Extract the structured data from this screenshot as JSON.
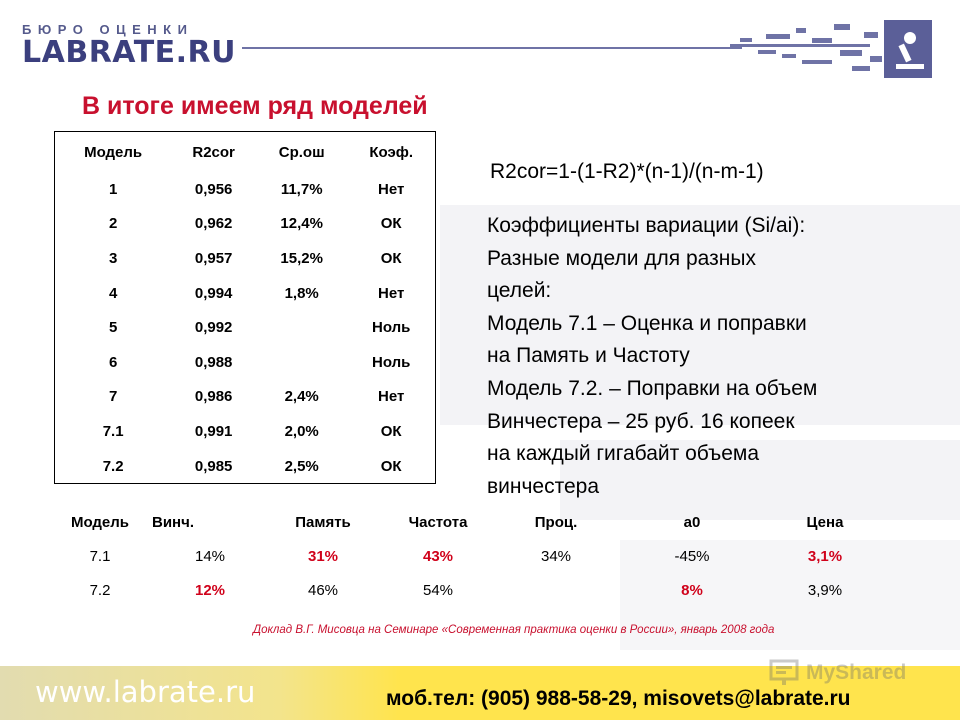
{
  "logo": {
    "sup": "БЮРО ОЦЕНКИ",
    "main": "LABRATE.RU"
  },
  "title": "В итоге имеем ряд моделей",
  "model_table": {
    "headers": [
      "Модель",
      "R2cor",
      "Ср.ош",
      "Коэф."
    ],
    "rows": [
      [
        "1",
        "0,956",
        "11,7%",
        "Нет"
      ],
      [
        "2",
        "0,962",
        "12,4%",
        "ОК"
      ],
      [
        "3",
        "0,957",
        "15,2%",
        "ОК"
      ],
      [
        "4",
        "0,994",
        "1,8%",
        "Нет"
      ],
      [
        "5",
        "0,992",
        "",
        "Ноль"
      ],
      [
        "6",
        "0,988",
        "",
        "Ноль"
      ],
      [
        "7",
        "0,986",
        "2,4%",
        "Нет"
      ],
      [
        "7.1",
        "0,991",
        "2,0%",
        "ОК"
      ],
      [
        "7.2",
        "0,985",
        "2,5%",
        "ОК"
      ]
    ]
  },
  "formula": "R2cor=1-(1-R2)*(n-1)/(n-m-1)",
  "notes": [
    "Коэффициенты вариации (Si/ai):",
    "Разные модели для разных",
    "целей:",
    "Модель 7.1 – Оценка и поправки",
    "на  Память и Частоту",
    "Модель 7.2. – Поправки на объем",
    "Винчестера – 25 руб. 16 копеек",
    "на каждый гигабайт объема",
    "винчестера"
  ],
  "factor_table": {
    "headers": [
      "Модель",
      "Винч.",
      "Память",
      "Частота",
      "Проц.",
      "a0",
      "Цена"
    ],
    "rows": [
      {
        "cells": [
          "7.1",
          "14%",
          "31%",
          "43%",
          "34%",
          "-45%",
          "3,1%"
        ],
        "highlight": [
          false,
          false,
          true,
          true,
          false,
          false,
          true
        ]
      },
      {
        "cells": [
          "7.2",
          "12%",
          "46%",
          "54%",
          "",
          "8%",
          "3,9%"
        ],
        "highlight": [
          false,
          true,
          false,
          false,
          false,
          true,
          false
        ]
      }
    ]
  },
  "citation": "Доклад В.Г. Мисовца на Семинаре «Современная практика оценки в России», январь 2008 года",
  "footer": {
    "url": "www.labrate.ru",
    "contacts": "моб.тел: (905) 988-58-29,    misovets@labrate.ru"
  },
  "watermark": "MyShared",
  "colors": {
    "title": "#c8102e",
    "highlight": "#d0021b",
    "footer": "#ffe44d",
    "logo": "#3b3f7e"
  }
}
